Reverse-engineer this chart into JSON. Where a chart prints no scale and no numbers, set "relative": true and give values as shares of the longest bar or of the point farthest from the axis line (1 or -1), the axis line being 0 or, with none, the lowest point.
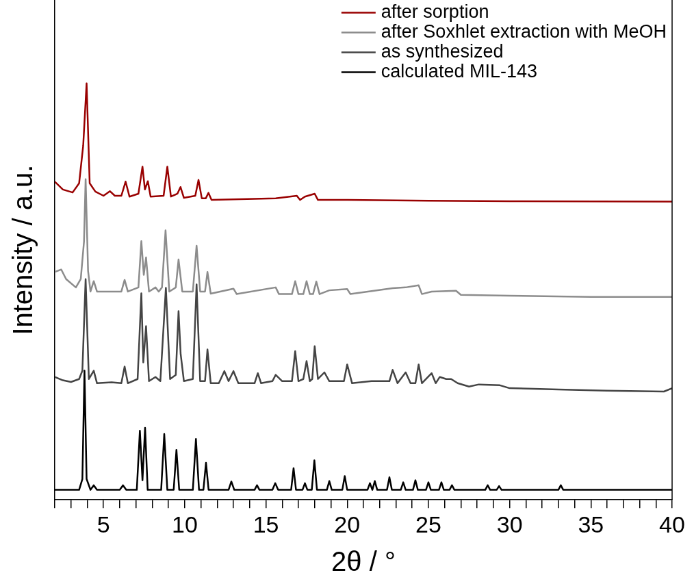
{
  "chart_data": {
    "type": "line",
    "xlabel": "2θ / °",
    "ylabel": "Intensity / a.u.",
    "relative": true,
    "marker": "none",
    "legend": "top right",
    "grid": false,
    "xlim": [
      2,
      40
    ],
    "xticks": [
      {
        "value": 2,
        "label": null
      },
      {
        "value": 3,
        "label": null
      },
      {
        "value": 4,
        "label": null
      },
      5,
      {
        "value": 6,
        "label": null
      },
      {
        "value": 7,
        "label": null
      },
      {
        "value": 8,
        "label": null
      },
      {
        "value": 9,
        "label": null
      },
      10,
      {
        "value": 11,
        "label": null
      },
      {
        "value": 12,
        "label": null
      },
      {
        "value": 13,
        "label": null
      },
      {
        "value": 14,
        "label": null
      },
      15,
      {
        "value": 16,
        "label": null
      },
      {
        "value": 17,
        "label": null
      },
      {
        "value": 18,
        "label": null
      },
      {
        "value": 19,
        "label": null
      },
      20,
      {
        "value": 21,
        "label": null
      },
      {
        "value": 22,
        "label": null
      },
      {
        "value": 23,
        "label": null
      },
      {
        "value": 24,
        "label": null
      },
      25,
      {
        "value": 26,
        "label": null
      },
      {
        "value": 27,
        "label": null
      },
      {
        "value": 28,
        "label": null
      },
      {
        "value": 29,
        "label": null
      },
      30,
      {
        "value": 31,
        "label": null
      },
      {
        "value": 32,
        "label": null
      },
      {
        "value": 33,
        "label": null
      },
      {
        "value": 34,
        "label": null
      },
      35,
      {
        "value": 36,
        "label": null
      },
      {
        "value": 37,
        "label": null
      },
      {
        "value": 38,
        "label": null
      },
      {
        "value": 39,
        "label": null
      },
      40
    ],
    "series": [
      {
        "name": "after sorption",
        "color": "#990000",
        "x": [
          2,
          2.5,
          3.1,
          3.5,
          3.75,
          3.96,
          4.15,
          4.5,
          5.0,
          5.4,
          5.7,
          6.1,
          6.36,
          6.6,
          7.15,
          7.4,
          7.55,
          7.73,
          7.9,
          8.7,
          8.93,
          9.15,
          9.55,
          9.74,
          9.95,
          10.65,
          10.85,
          11.05,
          11.3,
          11.46,
          11.65,
          15.6,
          16.9,
          17.1,
          17.4,
          18.0,
          18.2,
          20,
          25,
          30,
          40
        ],
        "values": [
          0.764,
          0.745,
          0.738,
          0.76,
          0.85,
          1.0,
          0.76,
          0.74,
          0.73,
          0.741,
          0.73,
          0.73,
          0.764,
          0.728,
          0.735,
          0.8,
          0.745,
          0.765,
          0.728,
          0.73,
          0.8,
          0.728,
          0.735,
          0.751,
          0.725,
          0.73,
          0.768,
          0.724,
          0.724,
          0.737,
          0.72,
          0.724,
          0.73,
          0.72,
          0.728,
          0.735,
          0.72,
          0.72,
          0.718,
          0.717,
          0.716
        ]
      },
      {
        "name": "after Soxhlet extraction with MeOH",
        "color": "#8c8c8c",
        "x": [
          2,
          2.4,
          2.7,
          3.3,
          3.6,
          3.8,
          3.9,
          4.05,
          4.2,
          4.4,
          4.6,
          6.1,
          6.3,
          6.5,
          7.15,
          7.33,
          7.48,
          7.62,
          7.8,
          8.2,
          8.4,
          8.6,
          8.82,
          9.05,
          9.45,
          9.62,
          9.85,
          10.5,
          10.73,
          10.95,
          11.25,
          11.4,
          11.6,
          13.0,
          13.2,
          15.6,
          15.8,
          16.6,
          16.8,
          17.0,
          17.3,
          17.5,
          17.7,
          17.9,
          18.1,
          18.3,
          18.9,
          20.0,
          20.2,
          22.8,
          23.6,
          24.4,
          24.6,
          25.2,
          26.7,
          27,
          30,
          35,
          40
        ],
        "values": [
          0.547,
          0.553,
          0.53,
          0.51,
          0.53,
          0.62,
          0.77,
          0.55,
          0.5,
          0.525,
          0.5,
          0.5,
          0.528,
          0.5,
          0.51,
          0.621,
          0.54,
          0.582,
          0.5,
          0.51,
          0.5,
          0.51,
          0.647,
          0.5,
          0.51,
          0.577,
          0.5,
          0.5,
          0.61,
          0.5,
          0.5,
          0.547,
          0.495,
          0.507,
          0.494,
          0.51,
          0.494,
          0.494,
          0.525,
          0.494,
          0.494,
          0.525,
          0.494,
          0.494,
          0.524,
          0.494,
          0.503,
          0.506,
          0.494,
          0.508,
          0.51,
          0.515,
          0.494,
          0.5,
          0.502,
          0.492,
          0.49,
          0.487,
          0.487
        ]
      },
      {
        "name": "as synthesized",
        "color": "#444444",
        "x": [
          2,
          2.5,
          3.0,
          3.5,
          3.7,
          3.9,
          4.1,
          4.4,
          4.6,
          5.5,
          6.1,
          6.3,
          6.5,
          7.1,
          7.33,
          7.45,
          7.62,
          7.8,
          8.2,
          8.5,
          8.84,
          9.1,
          9.45,
          9.62,
          9.75,
          9.95,
          10.5,
          10.73,
          10.95,
          11.25,
          11.4,
          11.6,
          12.1,
          12.44,
          12.7,
          13.0,
          13.3,
          14.3,
          14.5,
          14.7,
          15.4,
          15.6,
          16.0,
          16.6,
          16.8,
          17.0,
          17.3,
          17.5,
          17.7,
          17.85,
          18.0,
          18.2,
          18.6,
          18.9,
          19.8,
          20.0,
          20.3,
          21.5,
          22.6,
          22.8,
          23.1,
          23.6,
          23.9,
          24.2,
          24.4,
          24.6,
          25.2,
          25.45,
          25.7,
          26.1,
          26.4,
          26.8,
          27.5,
          28.1,
          29.4,
          30,
          33,
          36,
          39.5,
          40
        ],
        "values": [
          0.295,
          0.287,
          0.283,
          0.29,
          0.31,
          0.53,
          0.29,
          0.31,
          0.28,
          0.282,
          0.28,
          0.32,
          0.28,
          0.29,
          0.496,
          0.33,
          0.417,
          0.285,
          0.295,
          0.285,
          0.509,
          0.29,
          0.3,
          0.453,
          0.35,
          0.285,
          0.29,
          0.517,
          0.285,
          0.285,
          0.361,
          0.28,
          0.28,
          0.309,
          0.285,
          0.309,
          0.28,
          0.28,
          0.304,
          0.28,
          0.285,
          0.3,
          0.285,
          0.285,
          0.357,
          0.285,
          0.29,
          0.333,
          0.285,
          0.29,
          0.369,
          0.29,
          0.306,
          0.285,
          0.285,
          0.325,
          0.28,
          0.285,
          0.285,
          0.312,
          0.28,
          0.306,
          0.28,
          0.28,
          0.325,
          0.28,
          0.304,
          0.28,
          0.295,
          0.29,
          0.29,
          0.28,
          0.272,
          0.277,
          0.275,
          0.268,
          0.265,
          0.262,
          0.26,
          0.268
        ]
      },
      {
        "name": "calculated MIL-143",
        "color": "#000000",
        "x": [
          2,
          3.5,
          3.7,
          3.83,
          3.96,
          4.2,
          4.4,
          4.6,
          6.0,
          6.2,
          6.4,
          7.05,
          7.24,
          7.4,
          7.56,
          7.72,
          8.55,
          8.74,
          8.93,
          9.32,
          9.49,
          9.66,
          10.5,
          10.69,
          10.88,
          11.15,
          11.31,
          11.47,
          12.7,
          12.87,
          13.05,
          14.3,
          14.45,
          14.6,
          15.4,
          15.57,
          15.75,
          16.55,
          16.7,
          16.85,
          17.25,
          17.4,
          17.55,
          17.82,
          17.98,
          18.14,
          18.75,
          18.9,
          19.05,
          19.7,
          19.85,
          20.0,
          21.25,
          21.4,
          21.55,
          21.7,
          21.85,
          22.45,
          22.6,
          22.75,
          23.3,
          23.45,
          23.6,
          24.05,
          24.2,
          24.35,
          24.85,
          25.0,
          25.15,
          25.65,
          25.8,
          25.95,
          26.3,
          26.45,
          26.6,
          28.5,
          28.65,
          28.8,
          29.2,
          29.35,
          29.5,
          33.0,
          33.15,
          33.3,
          40
        ],
        "values": [
          0.024,
          0.024,
          0.05,
          0.31,
          0.05,
          0.024,
          0.035,
          0.024,
          0.024,
          0.035,
          0.024,
          0.024,
          0.166,
          0.047,
          0.173,
          0.024,
          0.024,
          0.158,
          0.024,
          0.024,
          0.12,
          0.024,
          0.024,
          0.146,
          0.024,
          0.024,
          0.089,
          0.024,
          0.024,
          0.044,
          0.024,
          0.024,
          0.035,
          0.024,
          0.024,
          0.04,
          0.024,
          0.024,
          0.076,
          0.024,
          0.024,
          0.04,
          0.024,
          0.024,
          0.095,
          0.024,
          0.024,
          0.045,
          0.024,
          0.024,
          0.057,
          0.024,
          0.024,
          0.04,
          0.024,
          0.045,
          0.024,
          0.024,
          0.054,
          0.024,
          0.024,
          0.042,
          0.024,
          0.024,
          0.047,
          0.024,
          0.024,
          0.042,
          0.024,
          0.024,
          0.042,
          0.024,
          0.024,
          0.035,
          0.024,
          0.024,
          0.035,
          0.024,
          0.024,
          0.033,
          0.024,
          0.024,
          0.035,
          0.024,
          0.024
        ]
      }
    ]
  }
}
